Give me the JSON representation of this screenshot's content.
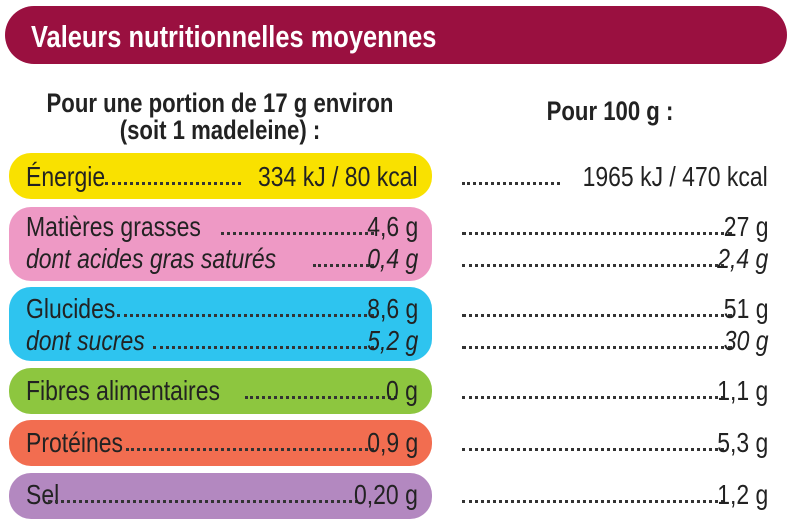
{
  "title": "Valeurs nutritionnelles moyennes",
  "header_left_line1": "Pour une portion de 17 g environ",
  "header_left_line2": "(soit 1 madeleine) :",
  "header_right": "Pour 100 g :",
  "colors": {
    "banner": "#9a1040",
    "energie": "#f9e100",
    "matieres": "#ee99c5",
    "glucides": "#2ec4ef",
    "fibres": "#8dc63f",
    "proteines": "#f26d50",
    "sel": "#b388c0"
  },
  "rows": {
    "energie": {
      "label": "Énergie",
      "portion": "334 kJ / 80 kcal",
      "per100": "1965 kJ / 470 kcal"
    },
    "matieres": {
      "label": "Matières grasses",
      "portion": "4,6 g",
      "per100": "27 g"
    },
    "satures": {
      "label": "dont acides gras saturés",
      "portion": "0,4 g",
      "per100": "2,4 g"
    },
    "glucides": {
      "label": "Glucides",
      "portion": "8,6 g",
      "per100": "51 g"
    },
    "sucres": {
      "label": "dont sucres",
      "portion": "5,2 g",
      "per100": "30 g"
    },
    "fibres": {
      "label": "Fibres alimentaires",
      "portion": "0 g",
      "per100": "1,1 g"
    },
    "proteines": {
      "label": "Protéines",
      "portion": "0,9 g",
      "per100": "5,3 g"
    },
    "sel": {
      "label": "Sel",
      "portion": "0,20 g",
      "per100": "1,2 g"
    }
  }
}
